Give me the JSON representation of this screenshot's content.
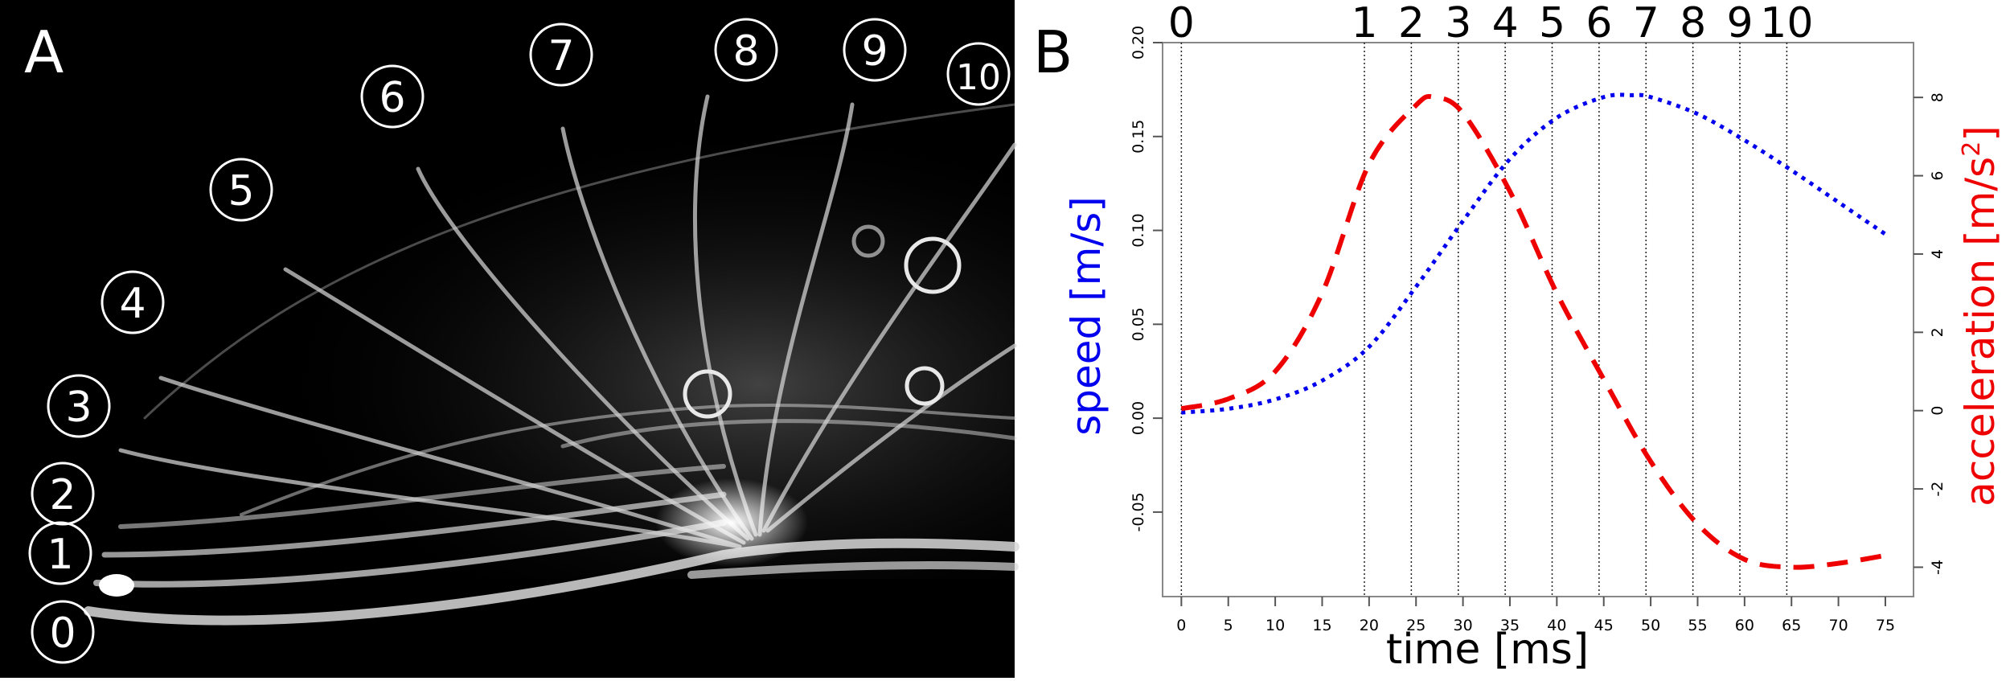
{
  "panels": {
    "a_label": "A",
    "b_label": "B"
  },
  "photo": {
    "frame_labels": [
      "0",
      "1",
      "2",
      "3",
      "4",
      "5",
      "6",
      "7",
      "8",
      "9",
      "10"
    ]
  },
  "chart_data": {
    "type": "line",
    "xlabel": "time [ms]",
    "ylabel_left": "speed [m/s]",
    "ylabel_right_prefix": "acceleration [m/s",
    "ylabel_right_sup": "2",
    "ylabel_right_suffix": "]",
    "xlim": [
      -2,
      78
    ],
    "x_ticks": [
      0,
      5,
      10,
      15,
      20,
      25,
      30,
      35,
      40,
      45,
      50,
      55,
      60,
      65,
      70,
      75
    ],
    "ylim_left": [
      -0.095,
      0.2
    ],
    "y_ticks_left": [
      -0.05,
      0.0,
      0.05,
      0.1,
      0.15,
      0.2
    ],
    "y_tick_labels_left": [
      "-0.05",
      "0.00",
      "0.05",
      "0.10",
      "0.15",
      "0.20"
    ],
    "ylim_right": [
      -4.75,
      9.4
    ],
    "y_ticks_right": [
      -4,
      -2,
      0,
      2,
      4,
      6,
      8
    ],
    "y_tick_labels_right": [
      "-4",
      "-2",
      "0",
      "2",
      "4",
      "6",
      "8"
    ],
    "frame_times": [
      0,
      19.5,
      24.5,
      29.5,
      34.5,
      39.5,
      44.5,
      49.5,
      54.5,
      59.5,
      64.5
    ],
    "frame_labels": [
      "0",
      "1",
      "2",
      "3",
      "4",
      "5",
      "6",
      "7",
      "8",
      "9",
      "10"
    ],
    "series": [
      {
        "name": "speed",
        "axis": "left",
        "color": "#0000ee",
        "style": "dotted",
        "x": [
          0,
          5,
          10,
          15,
          20,
          25,
          30,
          35,
          40,
          45,
          48,
          50,
          55,
          60,
          65,
          70,
          75
        ],
        "y": [
          0.003,
          0.005,
          0.01,
          0.02,
          0.038,
          0.07,
          0.105,
          0.138,
          0.16,
          0.171,
          0.172,
          0.171,
          0.162,
          0.148,
          0.132,
          0.115,
          0.098
        ]
      },
      {
        "name": "acceleration",
        "axis": "right",
        "color": "#ee0000",
        "style": "dashed",
        "x": [
          0,
          5,
          10,
          15,
          20,
          25,
          27,
          30,
          35,
          40,
          45,
          50,
          55,
          60,
          65,
          70,
          75
        ],
        "y": [
          0.05,
          0.3,
          1.0,
          3.0,
          6.3,
          7.8,
          8.0,
          7.6,
          5.6,
          3.0,
          0.8,
          -1.3,
          -2.9,
          -3.8,
          -4.0,
          -3.9,
          -3.7
        ]
      }
    ]
  }
}
